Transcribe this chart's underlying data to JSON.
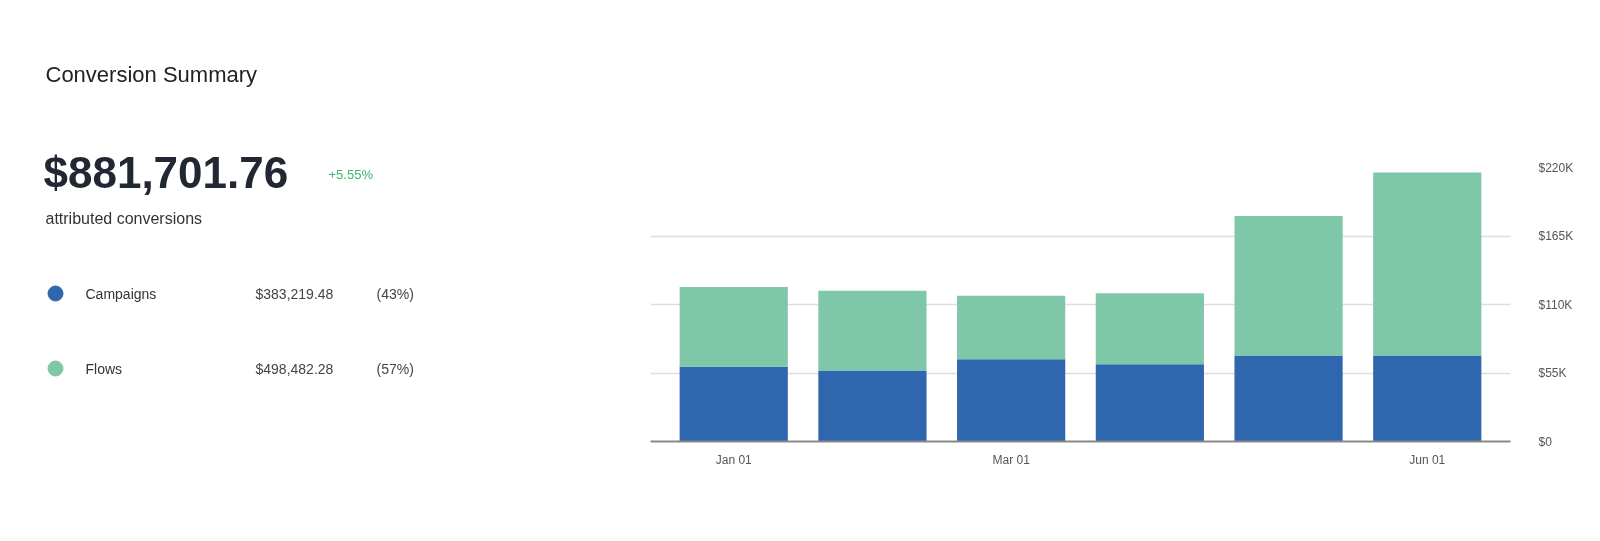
{
  "chart_data": {
    "type": "bar",
    "title": "Conversion Summary",
    "stacked": true,
    "categories": [
      "Jan 01",
      null,
      "Mar 01",
      null,
      null,
      "Jun 01"
    ],
    "series": [
      {
        "name": "Campaigns",
        "color": "#2e67ad",
        "values": [
          60000,
          57000,
          66000,
          62000,
          69000,
          69000
        ]
      },
      {
        "name": "Flows",
        "color": "#7fc7a9",
        "values": [
          64000,
          64000,
          51000,
          57000,
          112000,
          147000
        ]
      }
    ],
    "ylim": [
      0,
      220000
    ],
    "yticks": [
      {
        "value": 0,
        "label": "$0"
      },
      {
        "value": 55000,
        "label": "$55K"
      },
      {
        "value": 110000,
        "label": "$110K"
      },
      {
        "value": 165000,
        "label": "$165K"
      },
      {
        "value": 220000,
        "label": "$220K"
      }
    ],
    "grid": "y",
    "legend": "left",
    "annotations": [
      "$881,701.76",
      "+5.55%",
      "attributed conversions",
      "$383,219.48",
      "(43%)",
      "$498,482.28",
      "(57%)"
    ]
  }
}
